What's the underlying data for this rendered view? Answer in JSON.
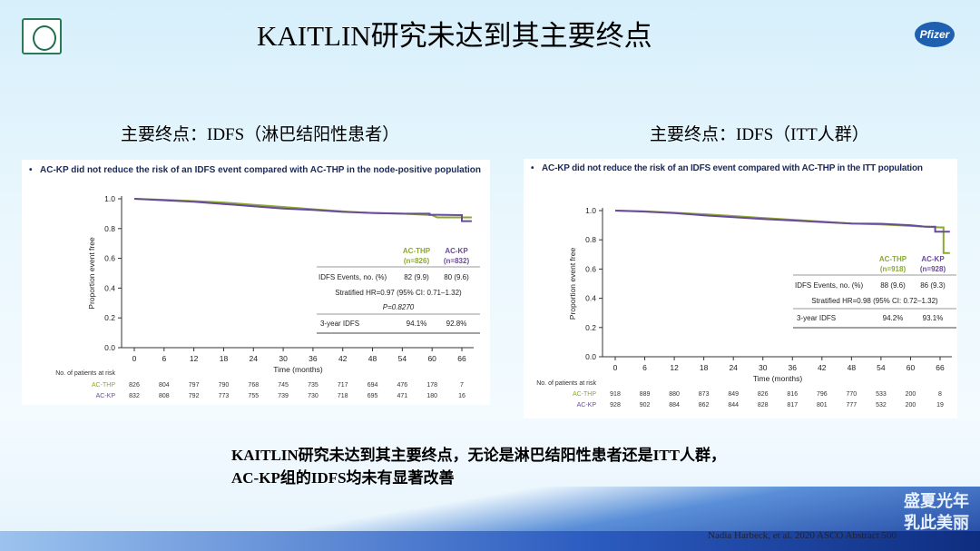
{
  "slide": {
    "title": "KAITLIN研究未达到其主要终点",
    "left_subtitle": "主要终点：IDFS（淋巴结阳性患者）",
    "right_subtitle": "主要终点：IDFS（ITT人群）",
    "conclusion_line1": "KAITLIN研究未达到其主要终点，无论是淋巴结阳性患者还是ITT人群，",
    "conclusion_line2": "AC-KP组的IDFS均未有显著改善",
    "logo_right_text": "Pfizer",
    "campaign_line1": "盛夏光年",
    "campaign_line2": "乳此美丽",
    "citation": "Nadia Harbeck, et al. 2020 ASCO Abstract 500"
  },
  "colors": {
    "ac_thp": "#8aa832",
    "ac_kp": "#6b4a9a",
    "bullet_text": "#1b2a5c"
  },
  "chart_data": [
    {
      "type": "line",
      "subtype": "kaplan-meier",
      "title": "AC-KP did not reduce the risk of an IDFS event compared with AC-THP in the node-positive population",
      "xlabel": "Time (months)",
      "ylabel": "Proportion event free",
      "xticks": [
        0,
        6,
        12,
        18,
        24,
        30,
        36,
        42,
        48,
        54,
        60,
        66
      ],
      "yticks": [
        "0.0",
        "0.2",
        "0.4",
        "0.6",
        "0.8",
        "1.0"
      ],
      "xlim": [
        0,
        68
      ],
      "ylim": [
        0,
        1
      ],
      "grid": false,
      "series": [
        {
          "name": "AC-THP",
          "n": "(n=826)",
          "color": "#8aa832",
          "points": [
            [
              0,
              1
            ],
            [
              6,
              0.993
            ],
            [
              12,
              0.985
            ],
            [
              18,
              0.975
            ],
            [
              24,
              0.96
            ],
            [
              30,
              0.945
            ],
            [
              36,
              0.93
            ],
            [
              42,
              0.915
            ],
            [
              48,
              0.905
            ],
            [
              54,
              0.9
            ],
            [
              60,
              0.89
            ],
            [
              61,
              0.875
            ],
            [
              68,
              0.875
            ]
          ]
        },
        {
          "name": "AC-KP",
          "n": "(n=832)",
          "color": "#6b4a9a",
          "points": [
            [
              0,
              1
            ],
            [
              6,
              0.99
            ],
            [
              12,
              0.98
            ],
            [
              18,
              0.965
            ],
            [
              24,
              0.95
            ],
            [
              30,
              0.935
            ],
            [
              36,
              0.925
            ],
            [
              42,
              0.912
            ],
            [
              48,
              0.905
            ],
            [
              54,
              0.9
            ],
            [
              59.5,
              0.9
            ],
            [
              59.5,
              0.893
            ],
            [
              66,
              0.89
            ],
            [
              66,
              0.85
            ],
            [
              68,
              0.85
            ]
          ]
        }
      ],
      "stats": {
        "events_label": "IDFS Events, no. (%)",
        "events": [
          "82 (9.9)",
          "80 (9.6)"
        ],
        "hr": "Stratified HR=0.97 (95% CI: 0.71–1.32)",
        "p": "P=0.8270",
        "idfs3_label": "3-year IDFS",
        "idfs3": [
          "94.1%",
          "92.8%"
        ]
      },
      "risk_table": {
        "label": "No. of patients at risk",
        "rows": [
          {
            "name": "AC-THP",
            "values": [
              "826",
              "804",
              "797",
              "790",
              "768",
              "745",
              "735",
              "717",
              "694",
              "476",
              "178",
              "7"
            ]
          },
          {
            "name": "AC-KP",
            "values": [
              "832",
              "808",
              "792",
              "773",
              "755",
              "739",
              "730",
              "718",
              "695",
              "471",
              "180",
              "16"
            ]
          }
        ]
      }
    },
    {
      "type": "line",
      "subtype": "kaplan-meier",
      "title": "AC-KP did not reduce the risk of an IDFS event compared with AC-THP in the ITT population",
      "xlabel": "Time (months)",
      "ylabel": "Proportion event free",
      "xticks": [
        0,
        6,
        12,
        18,
        24,
        30,
        36,
        42,
        48,
        54,
        60,
        66
      ],
      "yticks": [
        "0.0",
        "0.2",
        "0.4",
        "0.6",
        "0.8",
        "1.0"
      ],
      "xlim": [
        0,
        68
      ],
      "ylim": [
        0,
        1
      ],
      "grid": false,
      "series": [
        {
          "name": "AC-THP",
          "n": "(n=918)",
          "color": "#8aa832",
          "points": [
            [
              0,
              1
            ],
            [
              6,
              0.995
            ],
            [
              12,
              0.985
            ],
            [
              18,
              0.975
            ],
            [
              24,
              0.963
            ],
            [
              30,
              0.95
            ],
            [
              36,
              0.937
            ],
            [
              42,
              0.925
            ],
            [
              48,
              0.912
            ],
            [
              54,
              0.905
            ],
            [
              60,
              0.895
            ],
            [
              66,
              0.885
            ],
            [
              66.7,
              0.885
            ],
            [
              66.7,
              0.71
            ],
            [
              68,
              0.71
            ]
          ]
        },
        {
          "name": "AC-KP",
          "n": "(n=928)",
          "color": "#6b4a9a",
          "points": [
            [
              0,
              1
            ],
            [
              6,
              0.993
            ],
            [
              12,
              0.983
            ],
            [
              18,
              0.968
            ],
            [
              24,
              0.955
            ],
            [
              30,
              0.943
            ],
            [
              36,
              0.932
            ],
            [
              42,
              0.922
            ],
            [
              48,
              0.912
            ],
            [
              54,
              0.91
            ],
            [
              60,
              0.9
            ],
            [
              63,
              0.89
            ],
            [
              65,
              0.89
            ],
            [
              65,
              0.855
            ],
            [
              68,
              0.855
            ]
          ]
        }
      ],
      "stats": {
        "events_label": "IDFS Events, no. (%)",
        "events": [
          "88 (9.6)",
          "86 (9.3)"
        ],
        "hr": "Stratified HR=0.98 (95% CI: 0.72–1.32)",
        "idfs3_label": "3-year IDFS",
        "idfs3": [
          "94.2%",
          "93.1%"
        ]
      },
      "risk_table": {
        "label": "No. of patients at risk",
        "rows": [
          {
            "name": "AC-THP",
            "values": [
              "918",
              "889",
              "880",
              "873",
              "849",
              "826",
              "816",
              "796",
              "770",
              "533",
              "200",
              "8"
            ]
          },
          {
            "name": "AC-KP",
            "values": [
              "928",
              "902",
              "884",
              "862",
              "844",
              "828",
              "817",
              "801",
              "777",
              "532",
              "200",
              "19"
            ]
          }
        ]
      }
    }
  ]
}
